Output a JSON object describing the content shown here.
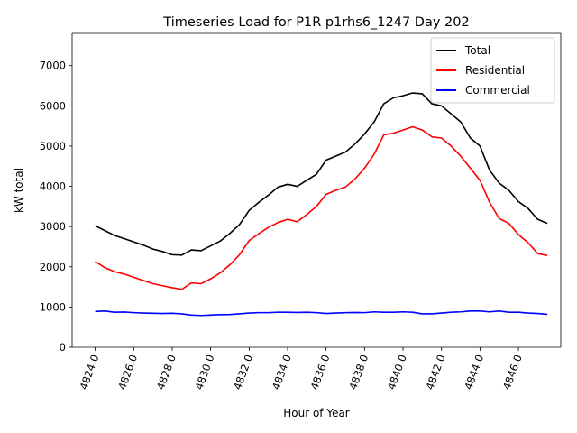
{
  "chart_data": {
    "type": "line",
    "title": "Timeseries Load for P1R p1rhs6_1247  Day 202",
    "xlabel": "Hour of Year",
    "ylabel": "kW total",
    "xlim": [
      4822.8,
      4848.2
    ],
    "ylim": [
      0,
      7800
    ],
    "x_ticks": [
      4824,
      4826,
      4828,
      4830,
      4832,
      4834,
      4836,
      4838,
      4840,
      4842,
      4844,
      4846
    ],
    "x_tick_labels": [
      "4824.0",
      "4826.0",
      "4828.0",
      "4830.0",
      "4832.0",
      "4834.0",
      "4836.0",
      "4838.0",
      "4840.0",
      "4842.0",
      "4844.0",
      "4846.0"
    ],
    "y_ticks": [
      0,
      1000,
      2000,
      3000,
      4000,
      5000,
      6000,
      7000
    ],
    "y_tick_labels": [
      "0",
      "1000",
      "2000",
      "3000",
      "4000",
      "5000",
      "6000",
      "7000"
    ],
    "legend_position": "top-right",
    "x": [
      4824.0,
      4824.5,
      4825.0,
      4825.5,
      4826.0,
      4826.5,
      4827.0,
      4827.5,
      4828.0,
      4828.5,
      4829.0,
      4829.5,
      4830.0,
      4830.5,
      4831.0,
      4831.5,
      4832.0,
      4832.5,
      4833.0,
      4833.5,
      4834.0,
      4834.5,
      4835.0,
      4835.5,
      4836.0,
      4836.5,
      4837.0,
      4837.5,
      4838.0,
      4838.5,
      4839.0,
      4839.5,
      4840.0,
      4840.5,
      4841.0,
      4841.5,
      4842.0,
      4842.5,
      4843.0,
      4843.5,
      4844.0,
      4844.5,
      4845.0,
      4845.5,
      4846.0,
      4846.5,
      4847.0,
      4847.5
    ],
    "series": [
      {
        "name": "Total",
        "color": "#000000",
        "values": [
          3020,
          2900,
          2780,
          2700,
          2620,
          2540,
          2440,
          2380,
          2300,
          2290,
          2420,
          2400,
          2520,
          2640,
          2830,
          3050,
          3400,
          3600,
          3780,
          3980,
          4050,
          4000,
          4150,
          4300,
          4650,
          4750,
          4850,
          5050,
          5300,
          5600,
          6050,
          6200,
          6250,
          6320,
          6300,
          6050,
          6000,
          5800,
          5600,
          5200,
          5000,
          4400,
          4080,
          3900,
          3620,
          3450,
          3180,
          3080
        ]
      },
      {
        "name": "Residential",
        "color": "#ff0000",
        "values": [
          2130,
          1980,
          1880,
          1820,
          1740,
          1660,
          1580,
          1530,
          1480,
          1440,
          1600,
          1580,
          1700,
          1850,
          2050,
          2300,
          2650,
          2820,
          2980,
          3100,
          3180,
          3120,
          3300,
          3500,
          3800,
          3900,
          3980,
          4180,
          4450,
          4800,
          5280,
          5320,
          5400,
          5480,
          5400,
          5230,
          5200,
          5000,
          4750,
          4450,
          4150,
          3600,
          3200,
          3080,
          2800,
          2600,
          2330,
          2280
        ]
      },
      {
        "name": "Commercial",
        "color": "#0000ff",
        "values": [
          890,
          900,
          870,
          875,
          860,
          850,
          845,
          840,
          845,
          830,
          800,
          790,
          800,
          810,
          815,
          830,
          850,
          860,
          860,
          870,
          870,
          865,
          870,
          860,
          840,
          850,
          860,
          865,
          860,
          880,
          870,
          870,
          880,
          870,
          830,
          830,
          850,
          870,
          880,
          900,
          900,
          880,
          900,
          870,
          870,
          850,
          840,
          820
        ]
      }
    ]
  }
}
